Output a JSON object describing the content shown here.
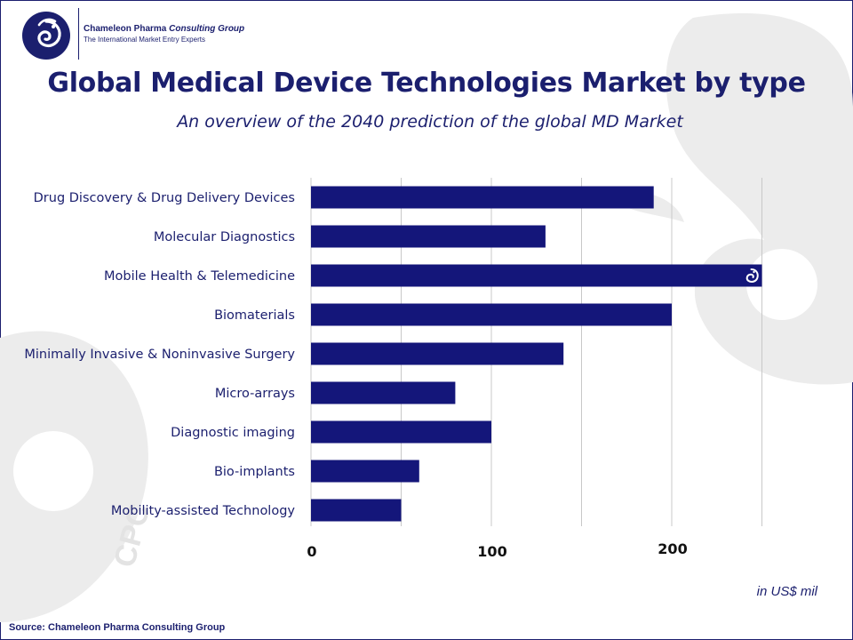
{
  "header": {
    "company_name": "Chameleon Pharma",
    "company_name_italic": "Consulting Group",
    "tagline": "The International Market Entry Experts"
  },
  "title": "Global Medical Device Technologies Market by type",
  "subtitle": "An overview of the 2040 prediction of the global MD Market",
  "unit_label": "in US$ mil",
  "source": "Source: Chameleon Pharma Consulting Group",
  "watermark_text": "CPC",
  "colors": {
    "bar": "#14167a",
    "text": "#1b1f6e",
    "grid": "#c8c8c8",
    "watermark": "#ececec"
  },
  "chart_data": {
    "type": "bar",
    "orientation": "horizontal",
    "categories": [
      "Drug Discovery & Drug Delivery Devices",
      "Molecular Diagnostics",
      "Mobile Health & Telemedicine",
      "Biomaterials",
      "Minimally Invasive & Noninvasive Surgery",
      "Micro-arrays",
      "Diagnostic imaging",
      "Bio-implants",
      "Mobility-assisted Technology"
    ],
    "values": [
      190,
      130,
      250,
      200,
      140,
      80,
      100,
      60,
      50
    ],
    "xlim": [
      0,
      250
    ],
    "xticks": [
      "0",
      "100",
      "200"
    ],
    "grid": true,
    "highlight_icon": "chameleon-logo-icon",
    "highlight_category": "Mobile Health & Telemedicine"
  }
}
